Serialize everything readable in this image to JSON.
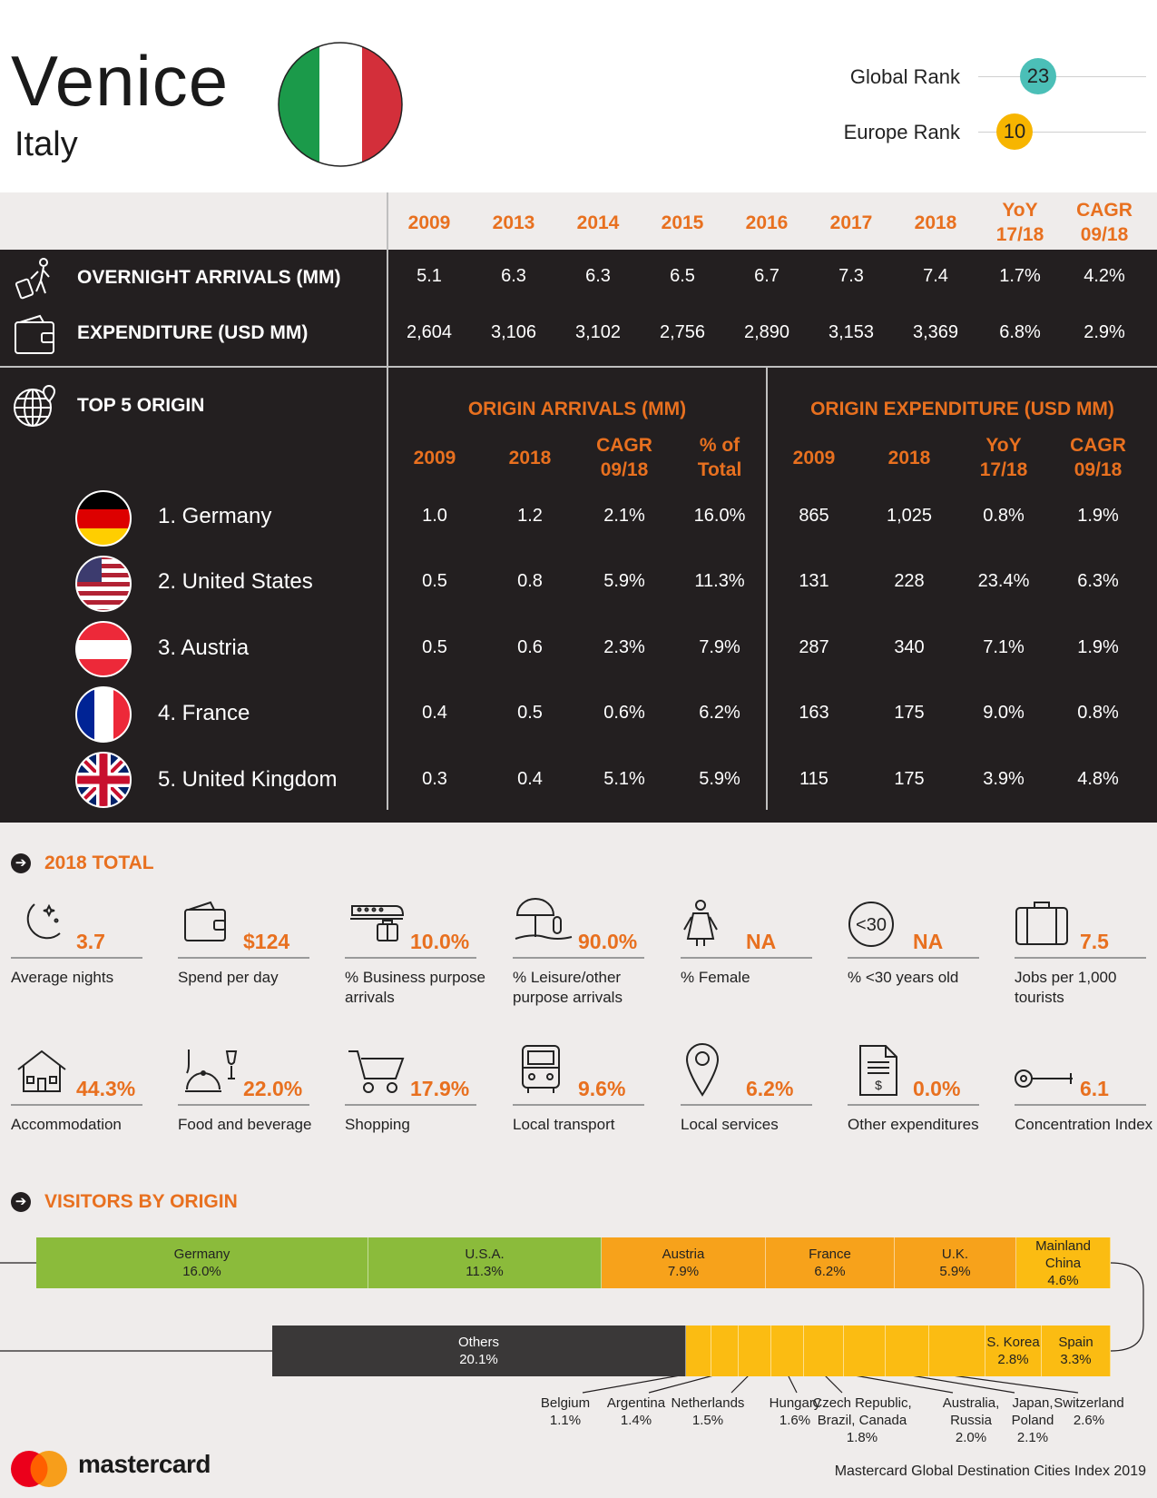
{
  "header": {
    "city": "Venice",
    "country": "Italy",
    "global_rank_label": "Global Rank",
    "global_rank": "23",
    "europe_rank_label": "Europe Rank",
    "europe_rank": "10",
    "global_color": "#4bbfb7",
    "europe_color": "#f7b500"
  },
  "years": {
    "y2009": "2009",
    "y2013": "2013",
    "y2014": "2014",
    "y2015": "2015",
    "y2016": "2016",
    "y2017": "2017",
    "y2018": "2018",
    "yoy": "YoY",
    "yoy2": "17/18",
    "cagr": "CAGR",
    "cagr2": "09/18"
  },
  "metrics": {
    "arrivals": {
      "label": "OVERNIGHT ARRIVALS (MM)",
      "values": [
        "5.1",
        "6.3",
        "6.3",
        "6.5",
        "6.7",
        "7.3",
        "7.4",
        "1.7%",
        "4.2%"
      ]
    },
    "expenditure": {
      "label": "EXPENDITURE (USD MM)",
      "values": [
        "2,604",
        "3,106",
        "3,102",
        "2,756",
        "2,890",
        "3,153",
        "3,369",
        "6.8%",
        "2.9%"
      ]
    }
  },
  "origin": {
    "title": "TOP 5 ORIGIN",
    "arrivals_title": "ORIGIN ARRIVALS (MM)",
    "expenditure_title": "ORIGIN EXPENDITURE (USD MM)",
    "col_2009": "2009",
    "col_2018": "2018",
    "col_cagr_1": "CAGR",
    "col_cagr_2": "09/18",
    "col_pct_1": "% of",
    "col_pct_2": "Total",
    "col_yoy_1": "YoY",
    "col_yoy_2": "17/18",
    "rows": [
      {
        "name": "1. Germany",
        "values": [
          "1.0",
          "1.2",
          "2.1%",
          "16.0%",
          "865",
          "1,025",
          "0.8%",
          "1.9%"
        ]
      },
      {
        "name": "2. United States",
        "values": [
          "0.5",
          "0.8",
          "5.9%",
          "11.3%",
          "131",
          "228",
          "23.4%",
          "6.3%"
        ]
      },
      {
        "name": "3. Austria",
        "values": [
          "0.5",
          "0.6",
          "2.3%",
          "7.9%",
          "287",
          "340",
          "7.1%",
          "1.9%"
        ]
      },
      {
        "name": "4. France",
        "values": [
          "0.4",
          "0.5",
          "0.6%",
          "6.2%",
          "163",
          "175",
          "9.0%",
          "0.8%"
        ]
      },
      {
        "name": "5. United Kingdom",
        "values": [
          "0.3",
          "0.4",
          "5.1%",
          "5.9%",
          "115",
          "175",
          "3.9%",
          "4.8%"
        ]
      }
    ]
  },
  "totals": {
    "title": "2018 TOTAL",
    "row1": [
      {
        "icon": "moon-icon",
        "value": "3.7",
        "label": "Average nights"
      },
      {
        "icon": "wallet-icon",
        "value": "$124",
        "label": "Spend per day"
      },
      {
        "icon": "train-icon",
        "value": "10.0%",
        "label": "% Business purpose arrivals"
      },
      {
        "icon": "beach-umbrella-icon",
        "value": "90.0%",
        "label": "% Leisure/other purpose arrivals"
      },
      {
        "icon": "female-icon",
        "value": "NA",
        "label": "% Female"
      },
      {
        "icon": "under-30-icon",
        "value": "NA",
        "label": "% <30 years old"
      },
      {
        "icon": "suitcase-icon",
        "value": "7.5",
        "label": "Jobs per 1,000 tourists"
      }
    ],
    "row2": [
      {
        "icon": "house-icon",
        "value": "44.3%",
        "label": "Accommodation"
      },
      {
        "icon": "food-icon",
        "value": "22.0%",
        "label": "Food and beverage"
      },
      {
        "icon": "cart-icon",
        "value": "17.9%",
        "label": "Shopping"
      },
      {
        "icon": "bus-icon",
        "value": "9.6%",
        "label": "Local transport"
      },
      {
        "icon": "location-pin-icon",
        "value": "6.2%",
        "label": "Local services"
      },
      {
        "icon": "receipt-icon",
        "value": "0.0%",
        "label": "Other expenditures"
      },
      {
        "icon": "key-icon",
        "value": "6.1",
        "label": "Concentration Index"
      }
    ],
    "under30_icon_text": "<30"
  },
  "visitors": {
    "title": "VISITORS BY ORIGIN",
    "top": [
      {
        "name": "Germany",
        "pct": "16.0%"
      },
      {
        "name": "U.S.A.",
        "pct": "11.3%"
      },
      {
        "name": "Austria",
        "pct": "7.9%"
      },
      {
        "name": "France",
        "pct": "6.2%"
      },
      {
        "name": "U.K.",
        "pct": "5.9%"
      },
      {
        "name": "Mainland China",
        "pct": "4.6%"
      }
    ],
    "bottom": [
      {
        "name": "Others",
        "pct": "20.1%"
      },
      {
        "name": "S. Korea",
        "pct": "2.8%"
      },
      {
        "name": "Spain",
        "pct": "3.3%"
      }
    ],
    "small": [
      {
        "name": "Belgium",
        "pct": "1.1%"
      },
      {
        "name": "Argentina",
        "pct": "1.4%"
      },
      {
        "name": "Netherlands",
        "pct": "1.5%"
      },
      {
        "name": "Hungary",
        "pct": "1.6%"
      },
      {
        "name": "Czech Republic, Brazil, Canada",
        "pct": "1.8%"
      },
      {
        "name": "Australia, Russia",
        "pct": "2.0%"
      },
      {
        "name": "Japan, Poland",
        "pct": "2.1%"
      },
      {
        "name": "Switzerland",
        "pct": "2.6%"
      }
    ],
    "colors": {
      "green": "#8bbb3b",
      "orange": "#f7a21b",
      "yellow": "#fbbc12",
      "dark": "#3a3838"
    }
  },
  "footer": {
    "brand": "mastercard",
    "note": "Mastercard Global Destination Cities Index 2019"
  }
}
